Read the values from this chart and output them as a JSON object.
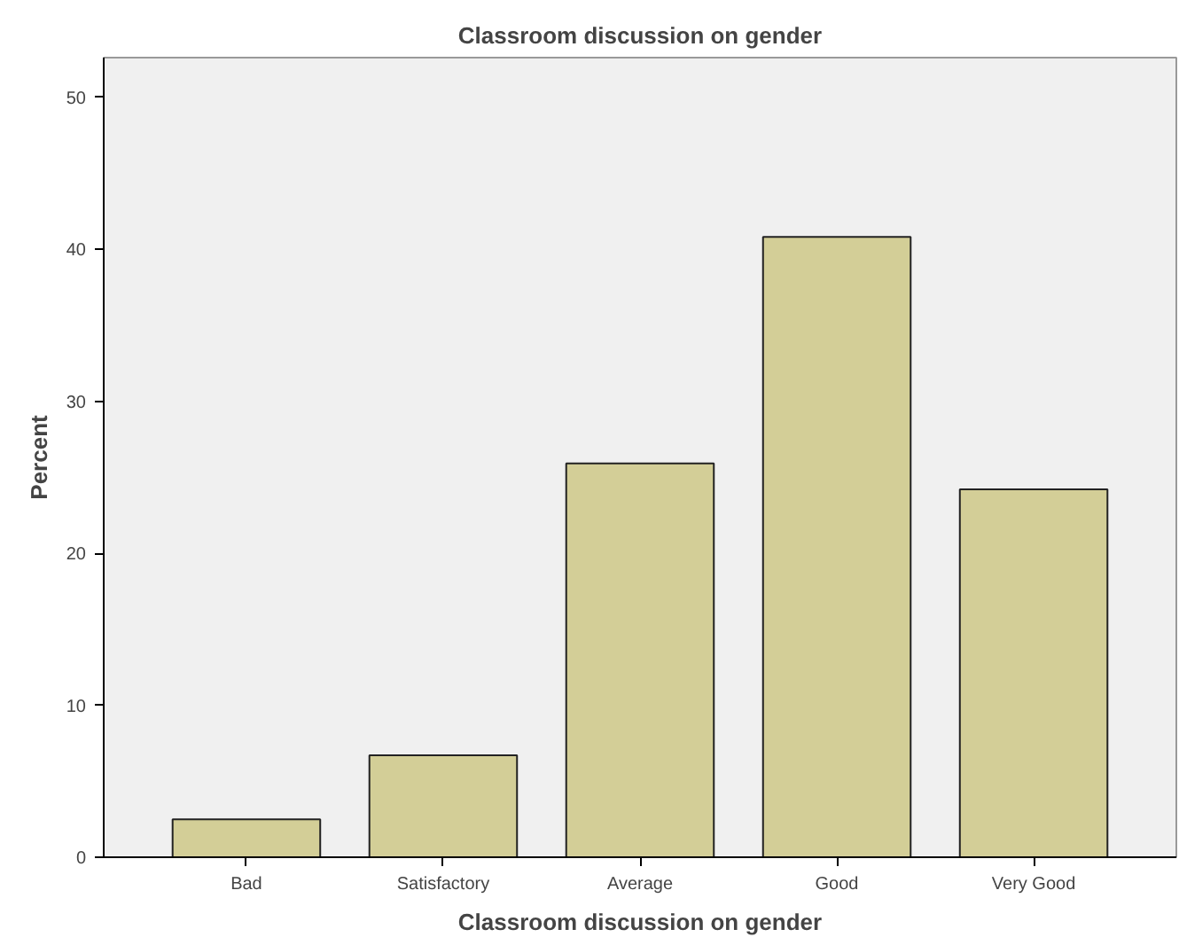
{
  "chart_data": {
    "type": "bar",
    "title": "Classroom discussion on gender",
    "xlabel": "Classroom discussion on gender",
    "ylabel": "Percent",
    "categories": [
      "Bad",
      "Satisfactory",
      "Average",
      "Good",
      "Very Good"
    ],
    "values": [
      2.5,
      6.7,
      25.9,
      40.8,
      24.2
    ],
    "color": "#d3ce97",
    "ylim": [
      0,
      52.6
    ],
    "yticks": [
      0,
      10,
      20,
      30,
      40,
      50
    ],
    "grid": false
  }
}
